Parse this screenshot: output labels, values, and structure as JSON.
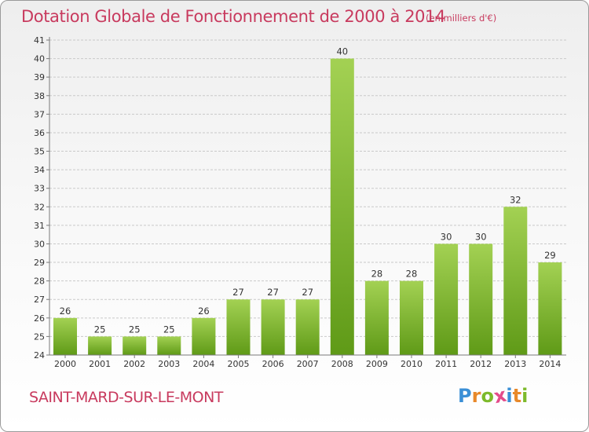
{
  "header": {
    "title": "Dotation Globale de Fonctionnement de 2000 à 2014",
    "unit": "(en milliers d'€)"
  },
  "footer": {
    "commune": "SAINT-MARD-SUR-LE-MONT",
    "logo": {
      "letters": [
        "P",
        "r",
        "o",
        "x",
        "i",
        "t",
        "i"
      ],
      "colors": [
        "#3a8fd6",
        "#e8892a",
        "#7dba2b",
        "#e44b8a",
        "#3a8fd6",
        "#e8892a",
        "#7dba2b"
      ]
    }
  },
  "chart_data": {
    "type": "bar",
    "title": "Dotation Globale de Fonctionnement de 2000 à 2014",
    "categories": [
      "2000",
      "2001",
      "2002",
      "2003",
      "2004",
      "2005",
      "2006",
      "2007",
      "2008",
      "2009",
      "2010",
      "2011",
      "2012",
      "2013",
      "2014"
    ],
    "values": [
      26,
      25,
      25,
      25,
      26,
      27,
      27,
      27,
      40,
      28,
      28,
      30,
      30,
      32,
      29
    ],
    "ylim": [
      24,
      41
    ],
    "yticks": [
      24,
      25,
      26,
      27,
      28,
      29,
      30,
      31,
      32,
      33,
      34,
      35,
      36,
      37,
      38,
      39,
      40,
      41
    ],
    "grid": true,
    "bar_color_top": "#a3d153",
    "bar_color_bottom": "#5f9a17",
    "grid_color": "#c9c9c9",
    "axis_color": "#7a7a7a",
    "text_color": "#333333"
  }
}
